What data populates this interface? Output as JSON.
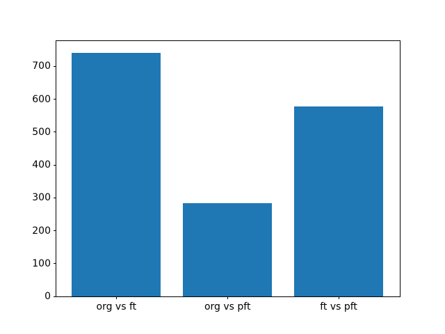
{
  "figure": {
    "background": "#ffffff",
    "border_color": "#000000",
    "text_color": "#000000"
  },
  "chart_data": {
    "type": "bar",
    "categories": [
      "org vs ft",
      "org vs pft",
      "ft vs pft"
    ],
    "values": [
      740,
      283,
      578
    ],
    "bar_color": "#1f77b4",
    "ylim": [
      0,
      777
    ],
    "yticks": [
      0,
      100,
      200,
      300,
      400,
      500,
      600,
      700
    ],
    "xlim": [
      -0.54,
      2.55
    ],
    "bar_width": 0.8,
    "grid": false,
    "legend": "none"
  }
}
